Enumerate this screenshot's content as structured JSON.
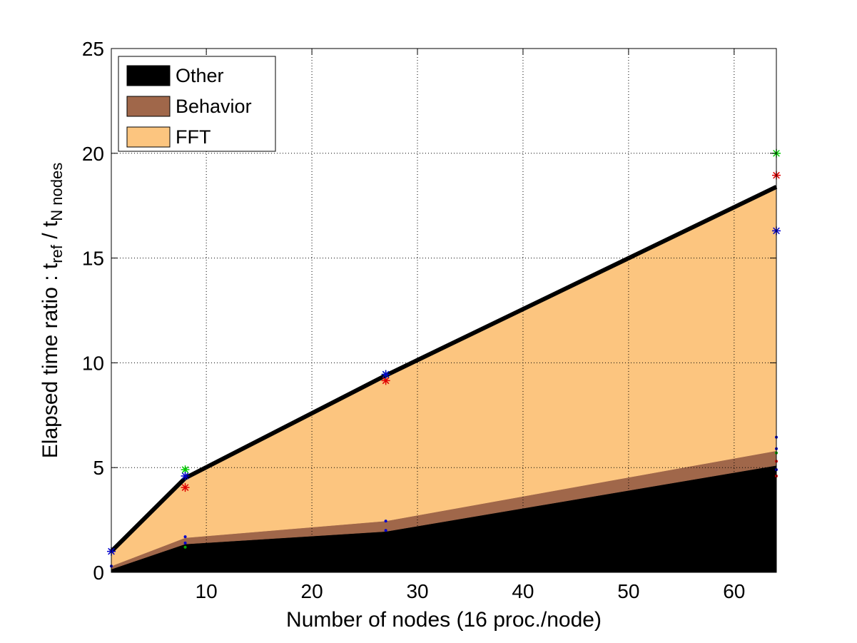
{
  "chart_data": {
    "type": "area",
    "title": "",
    "xlabel": "Number of nodes (16 proc./node)",
    "ylabel": {
      "main": "Elapsed time ratio : t",
      "sub1": "ref",
      "mid": " / t",
      "sub2": "N nodes"
    },
    "xlim": [
      1,
      64
    ],
    "ylim": [
      0,
      25
    ],
    "xticks": [
      10,
      20,
      30,
      40,
      50,
      60
    ],
    "yticks": [
      0,
      5,
      10,
      15,
      20,
      25
    ],
    "grid": true,
    "legend_position": "top-left",
    "x": [
      1,
      8,
      27,
      64
    ],
    "series": [
      {
        "name": "Other",
        "color": "#000000",
        "values": [
          0.15,
          1.35,
          1.95,
          5.1
        ]
      },
      {
        "name": "Behavior",
        "color": "#a0674a",
        "values": [
          0.15,
          0.3,
          0.5,
          0.7
        ]
      },
      {
        "name": "FFT",
        "color": "#fcc57f",
        "values": [
          0.7,
          2.85,
          6.95,
          12.6
        ]
      }
    ],
    "total_line": {
      "values": [
        1.0,
        4.5,
        9.4,
        18.4
      ],
      "color": "#000000"
    },
    "markers": [
      {
        "color": "#00cc00",
        "points": [
          [
            8,
            4.9
          ],
          [
            27,
            9.45
          ],
          [
            64,
            20.0
          ]
        ]
      },
      {
        "color": "#e00000",
        "points": [
          [
            8,
            4.05
          ],
          [
            27,
            9.15
          ],
          [
            64,
            18.95
          ]
        ]
      },
      {
        "color": "#0000cc",
        "points": [
          [
            1,
            1.0
          ],
          [
            8,
            4.6
          ],
          [
            27,
            9.45
          ],
          [
            64,
            16.3
          ]
        ]
      }
    ],
    "small_markers": [
      {
        "color": "#0000cc",
        "points": [
          [
            1,
            0.3
          ],
          [
            8,
            1.7
          ],
          [
            8,
            1.4
          ],
          [
            27,
            2.45
          ],
          [
            27,
            2.0
          ],
          [
            64,
            6.45
          ],
          [
            64,
            5.9
          ],
          [
            64,
            4.9
          ]
        ]
      },
      {
        "color": "#00aa00",
        "points": [
          [
            8,
            1.2
          ],
          [
            64,
            5.7
          ]
        ]
      },
      {
        "color": "#e00000",
        "points": [
          [
            64,
            5.3
          ],
          [
            64,
            4.6
          ]
        ]
      }
    ]
  }
}
